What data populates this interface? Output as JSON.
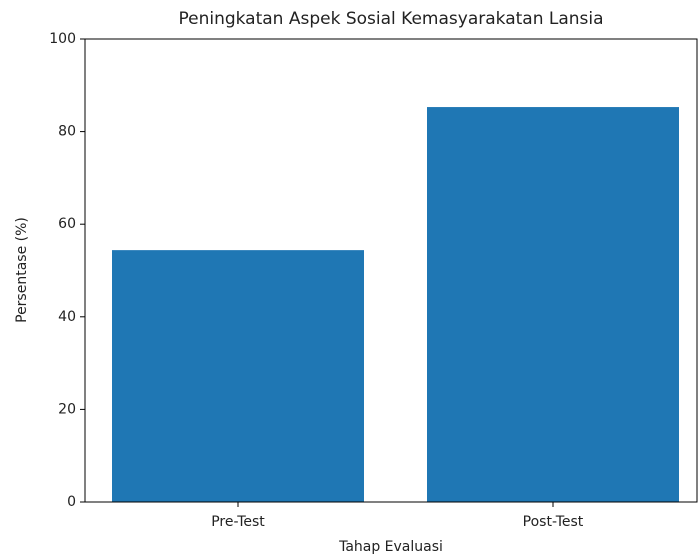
{
  "chart_data": {
    "type": "bar",
    "title": "Peningkatan Aspek Sosial Kemasyarakatan Lansia",
    "x_label": "Tahap Evaluasi",
    "y_label": "Persentase (%)",
    "categories": [
      "Pre-Test",
      "Post-Test"
    ],
    "values": [
      54.4,
      85.3
    ],
    "color": "#1f77b4",
    "ylim": [
      0,
      100
    ],
    "yticks": [
      0,
      20,
      40,
      60,
      80,
      100
    ],
    "grid": false
  }
}
